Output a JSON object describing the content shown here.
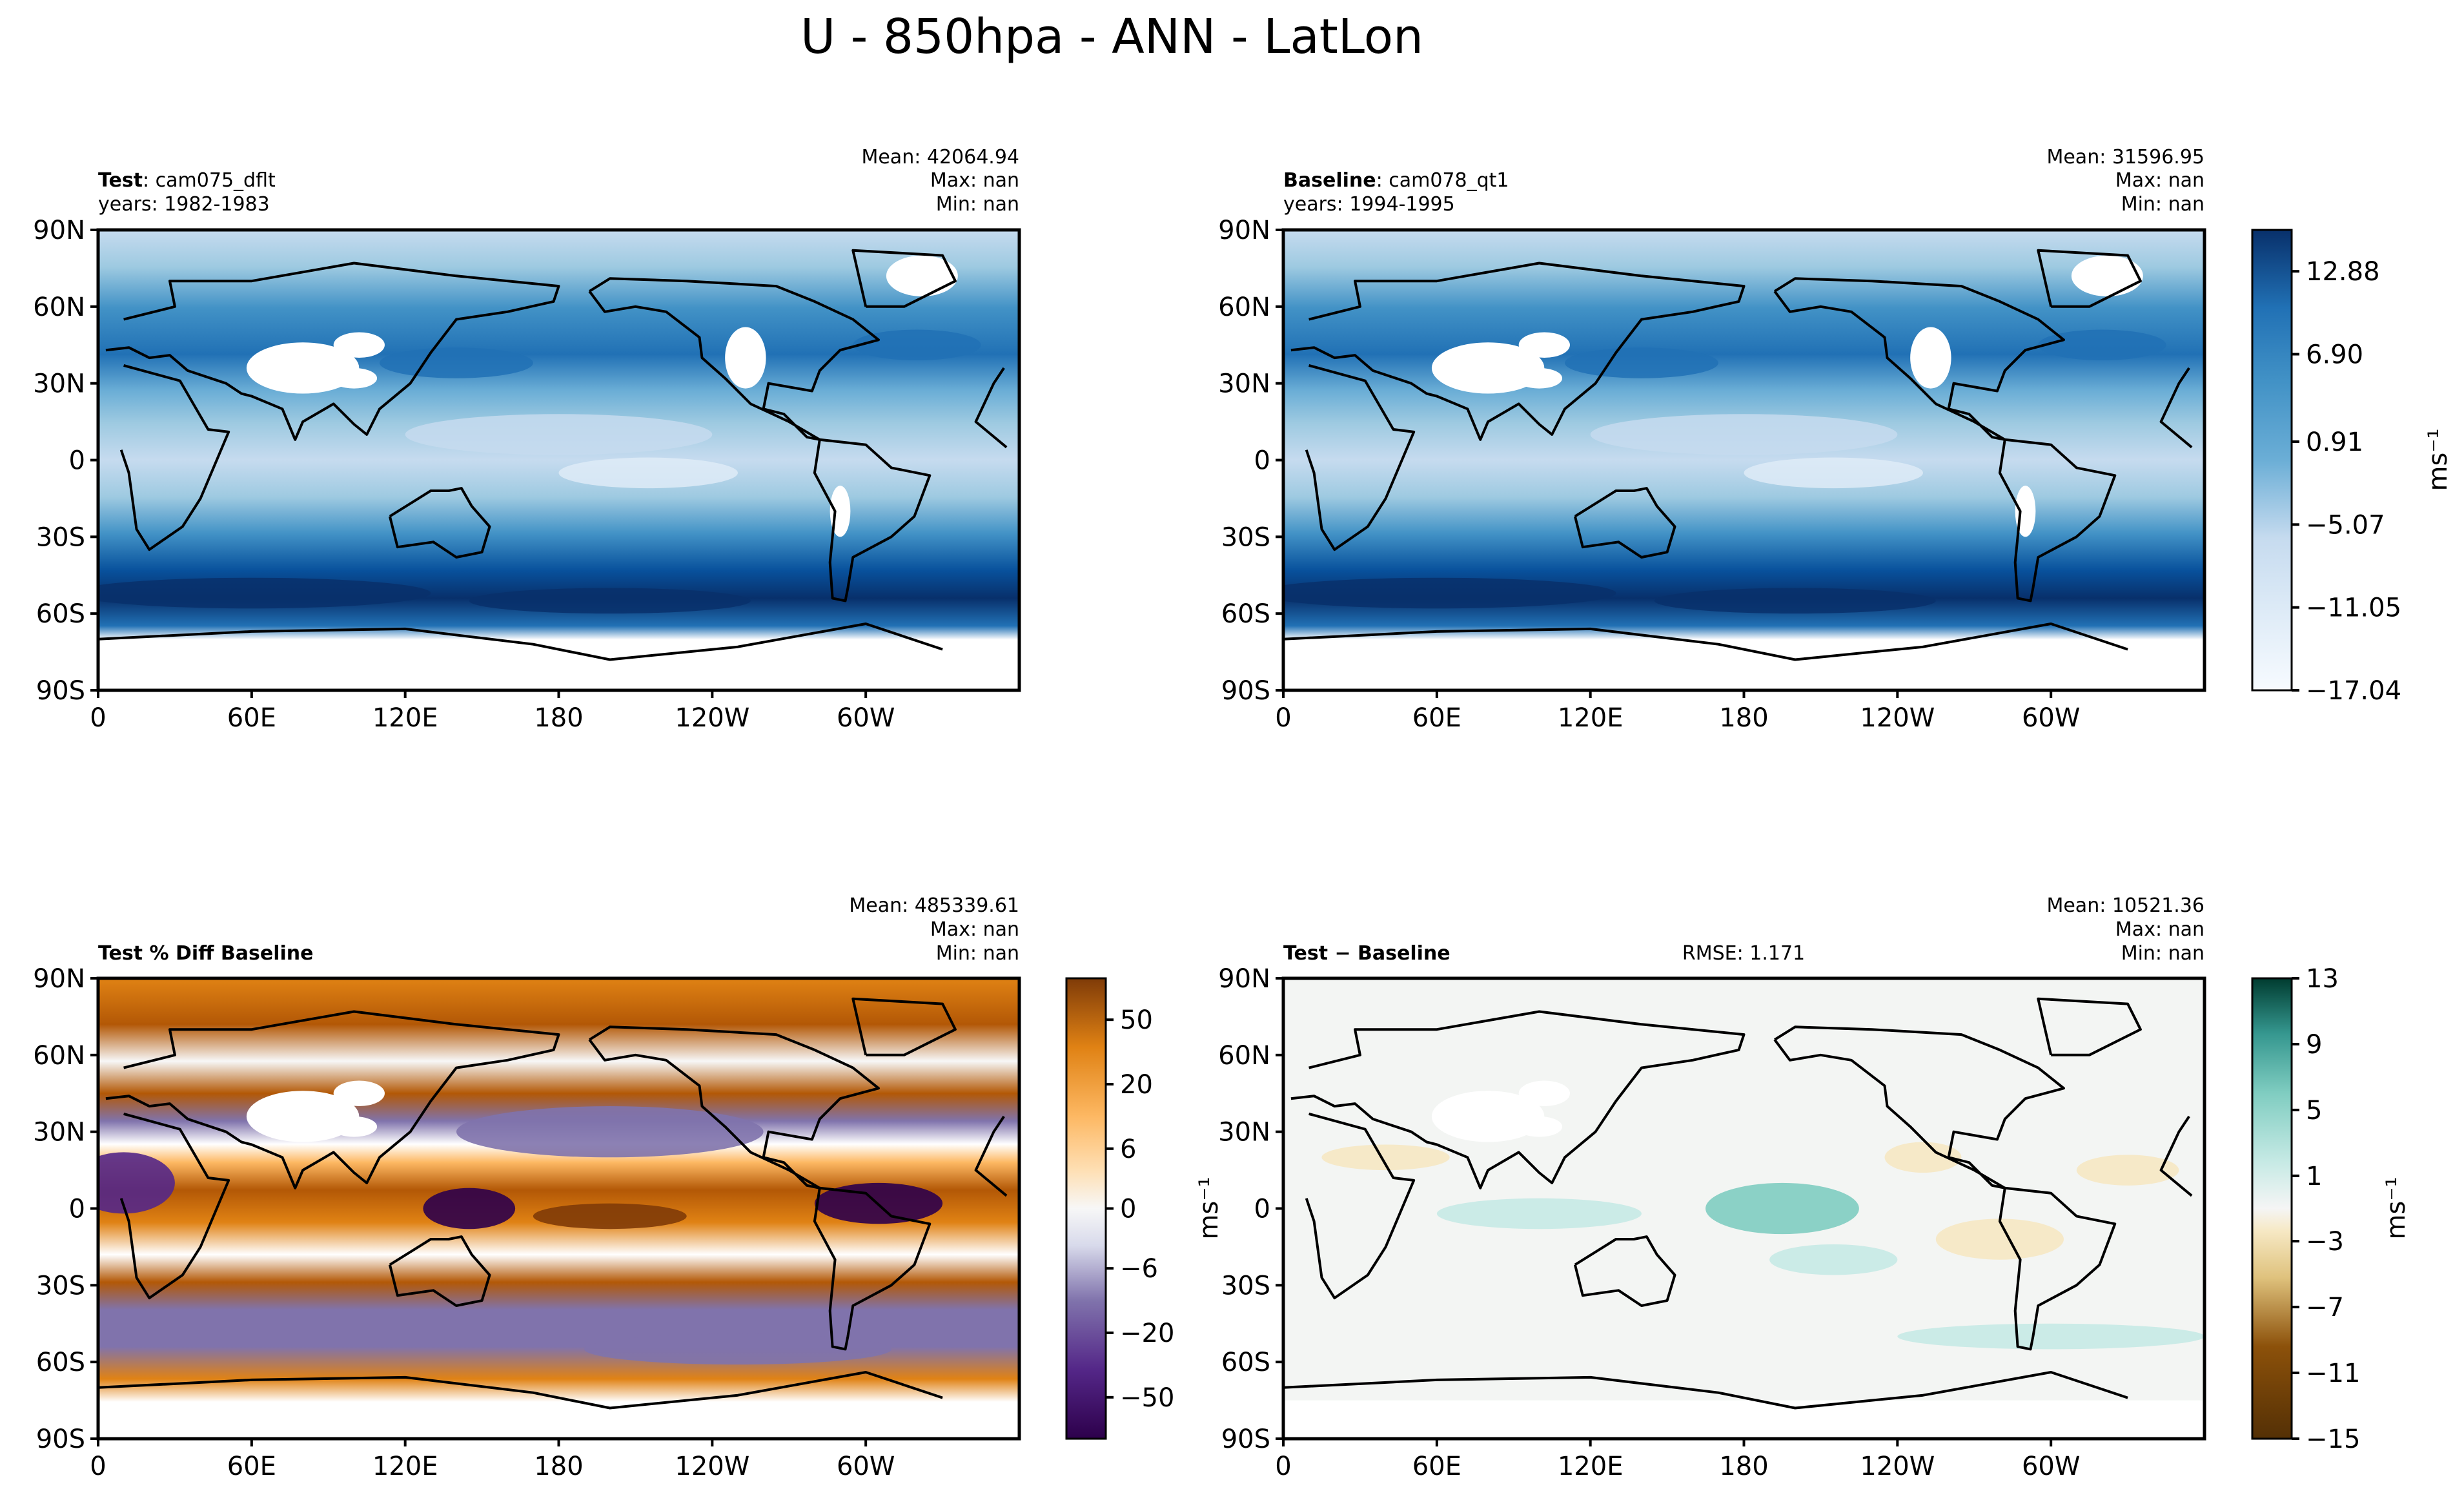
{
  "figure": {
    "title": "U - 850hpa - ANN - LatLon"
  },
  "axes": {
    "lat_labels": [
      "90N",
      "60N",
      "30N",
      "0",
      "30S",
      "60S",
      "90S"
    ],
    "lon_labels": [
      "0",
      "60E",
      "120E",
      "180",
      "120W",
      "60W"
    ]
  },
  "panels": {
    "test": {
      "label_bold": "Test",
      "label_rest": ": cam075_dflt",
      "years": "years: 1982-1983",
      "stats": {
        "mean": "Mean: 42064.94",
        "max": "Max:   nan",
        "min": "Min:   nan"
      }
    },
    "baseline": {
      "label_bold": "Baseline",
      "label_rest": ": cam078_qt1",
      "years": "years: 1994-1995",
      "stats": {
        "mean": "Mean: 31596.95",
        "max": "Max:   nan",
        "min": "Min:   nan"
      }
    },
    "pctdiff": {
      "label_bold": "Test % Diff Baseline",
      "stats": {
        "mean": "Mean: 485339.61",
        "max": "Max:   nan",
        "min": "Min:   nan"
      }
    },
    "diff": {
      "label_bold": "Test − Baseline",
      "rmse": "RMSE: 1.171",
      "stats": {
        "mean": "Mean: 10521.36",
        "max": "Max:   nan",
        "min": "Min:   nan"
      }
    }
  },
  "colorbars": {
    "main": {
      "ticks": [
        "12.88",
        "6.90",
        "0.91",
        "−5.07",
        "−11.05",
        "−17.04"
      ],
      "unit": "ms⁻¹"
    },
    "pctdiff": {
      "ticks": [
        "50",
        "20",
        "6",
        "0",
        "−6",
        "−20",
        "−50"
      ],
      "unit": "ms⁻¹"
    },
    "diff": {
      "ticks": [
        "13",
        "9",
        "5",
        "1",
        "−3",
        "−7",
        "−11",
        "−15"
      ],
      "unit": "ms⁻¹"
    }
  },
  "chart_data": [
    {
      "type": "heatmap",
      "title": "Test: cam075_dflt",
      "variable": "U",
      "level": "850hpa",
      "season": "ANN",
      "projection": "LatLon",
      "xlim": [
        0,
        360
      ],
      "ylim": [
        -90,
        90
      ],
      "colormap": "Blues",
      "color_levels": [
        -17.04,
        -11.05,
        -5.07,
        0.91,
        6.9,
        12.88
      ],
      "colors": [
        "#f7fbff",
        "#deebf7",
        "#c6dbef",
        "#9ecae1",
        "#6baed6",
        "#4292c6",
        "#2171b5",
        "#08519c",
        "#08306b"
      ],
      "zonal_profile": {
        "lat": [
          80,
          60,
          45,
          30,
          15,
          0,
          -15,
          -30,
          -45,
          -55,
          -65
        ],
        "u": [
          0.5,
          4,
          7,
          3,
          -2,
          -4,
          -5,
          2,
          9,
          12,
          4
        ]
      }
    },
    {
      "type": "heatmap",
      "title": "Baseline: cam078_qt1",
      "variable": "U",
      "xlim": [
        0,
        360
      ],
      "ylim": [
        -90,
        90
      ],
      "colormap": "Blues",
      "color_levels": [
        -17.04,
        -11.05,
        -5.07,
        0.91,
        6.9,
        12.88
      ],
      "zonal_profile": {
        "lat": [
          80,
          60,
          45,
          30,
          15,
          0,
          -15,
          -30,
          -45,
          -55,
          -65
        ],
        "u": [
          0.5,
          4,
          7,
          3,
          -2,
          -4,
          -5,
          2,
          9,
          12,
          4
        ]
      }
    },
    {
      "type": "heatmap",
      "title": "Test % Diff Baseline",
      "xlim": [
        0,
        360
      ],
      "ylim": [
        -90,
        90
      ],
      "colormap": "PuOr",
      "color_levels": [
        -50,
        -20,
        -6,
        0,
        6,
        20,
        50
      ],
      "colors": [
        "#2d004b",
        "#542788",
        "#8073ac",
        "#b2abd2",
        "#d8daeb",
        "#f7f7f7",
        "#fee0b6",
        "#fdb863",
        "#e08214",
        "#b35806",
        "#7f3b08"
      ]
    },
    {
      "type": "heatmap",
      "title": "Test − Baseline",
      "rmse": 1.171,
      "xlim": [
        0,
        360
      ],
      "ylim": [
        -90,
        90
      ],
      "colormap": "BrBG",
      "color_levels": [
        -15,
        -11,
        -7,
        -3,
        1,
        5,
        9,
        13
      ],
      "colors": [
        "#543005",
        "#8c510a",
        "#bf812d",
        "#dfc27d",
        "#f6e8c3",
        "#f5f5f5",
        "#c7eae5",
        "#80cdc1",
        "#35978f",
        "#01665e",
        "#003c30"
      ]
    }
  ]
}
